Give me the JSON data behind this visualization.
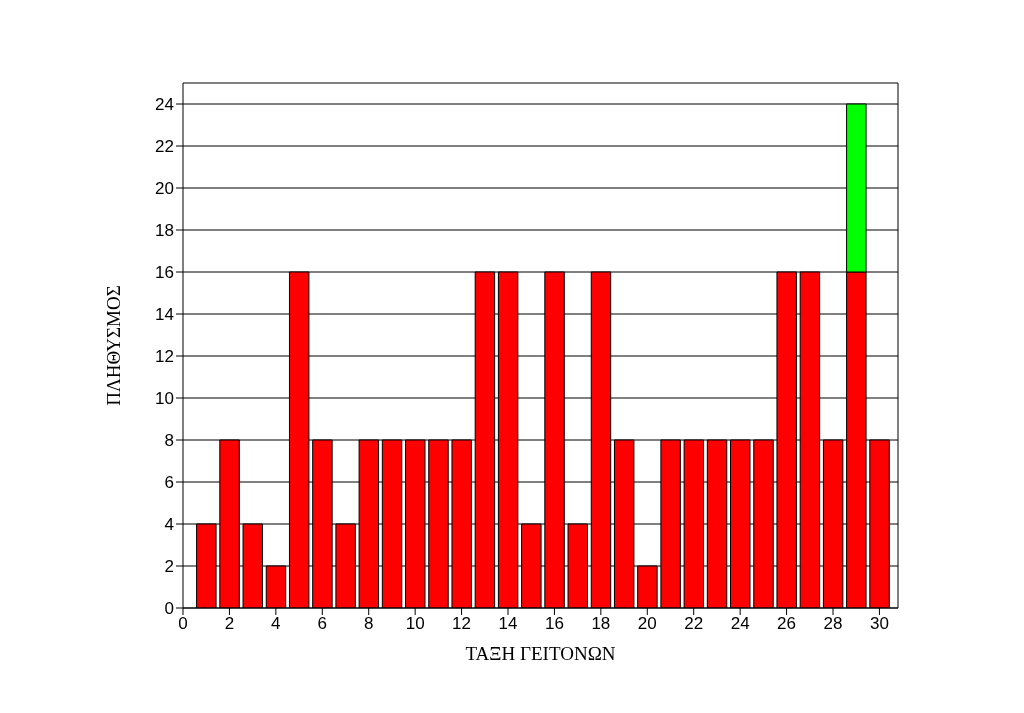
{
  "chart_data": {
    "type": "bar",
    "xlabel": "ΤΑΞΗ ΓΕΙΤΟΝΩΝ",
    "ylabel": "ΠΛΗΘΥΣΜΟΣ",
    "x": [
      1,
      2,
      3,
      4,
      5,
      6,
      7,
      8,
      9,
      10,
      11,
      12,
      13,
      14,
      15,
      16,
      17,
      18,
      19,
      20,
      21,
      22,
      23,
      24,
      25,
      26,
      27,
      28,
      29,
      30
    ],
    "series": [
      {
        "color": "#ff0000",
        "values": [
          4,
          8,
          4,
          2,
          16,
          8,
          4,
          8,
          8,
          8,
          8,
          8,
          16,
          16,
          4,
          16,
          4,
          16,
          8,
          2,
          8,
          8,
          8,
          8,
          8,
          16,
          16,
          8,
          16,
          8
        ]
      },
      {
        "color": "#00ff00",
        "values": [
          null,
          null,
          null,
          null,
          null,
          null,
          null,
          null,
          null,
          null,
          null,
          null,
          null,
          null,
          null,
          null,
          null,
          null,
          null,
          null,
          null,
          null,
          null,
          null,
          null,
          null,
          null,
          null,
          8,
          null
        ]
      }
    ],
    "stacked": true,
    "xlim": [
      0,
      30.8
    ],
    "xticks": [
      0,
      2,
      4,
      6,
      8,
      10,
      12,
      14,
      16,
      18,
      20,
      22,
      24,
      26,
      28,
      30
    ],
    "ylim": [
      0,
      25
    ],
    "yticks": [
      0,
      2,
      4,
      6,
      8,
      10,
      12,
      14,
      16,
      18,
      20,
      22,
      24
    ],
    "grid": "y",
    "legend": false
  }
}
